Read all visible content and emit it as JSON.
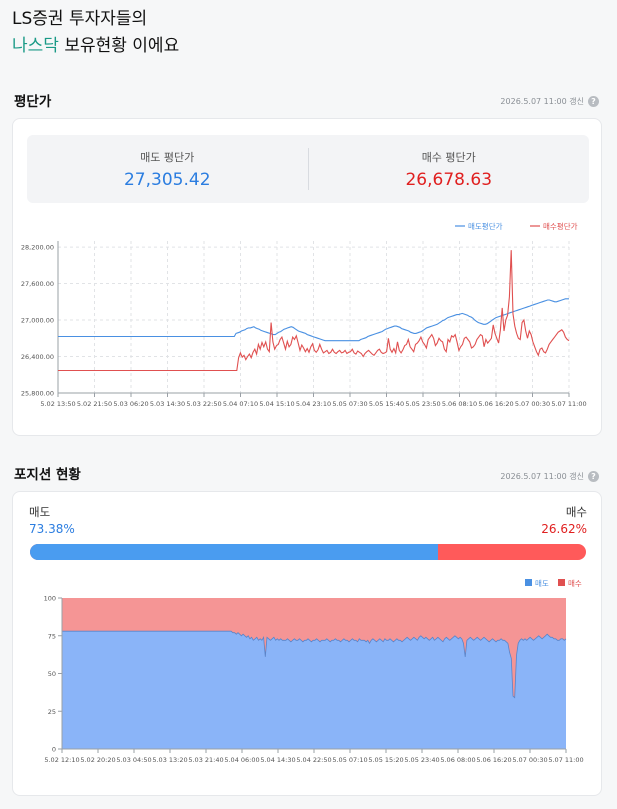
{
  "headline": {
    "line1": "LS증권 투자자들의",
    "accent": "나스닥",
    "line2_rest": " 보유현황 이에요"
  },
  "avg_section": {
    "title": "평단가",
    "updated": "2026.5.07 11:00 갱신",
    "help": "?",
    "sell_label": "매도 평단가",
    "sell_value": "27,305.42",
    "buy_label": "매수 평단가",
    "buy_value": "26,678.63"
  },
  "position_section": {
    "title": "포지션 현황",
    "updated": "2026.5.07 11:00 갱신",
    "help": "?",
    "sell_label": "매도",
    "sell_pct_text": "73.38%",
    "sell_ratio": 0.7338,
    "buy_label": "매수",
    "buy_pct_text": "26.62%"
  },
  "colors": {
    "sell": "#4a90e2",
    "buy": "#e05050",
    "sell_area": "#8ab4f8",
    "buy_area": "#f59595",
    "accent": "#1a9a86"
  },
  "chart_data": [
    {
      "type": "line",
      "legend_position": "top-right",
      "grid": true,
      "ylim": [
        25800,
        28300
      ],
      "y_ticks": [
        "28,200.00",
        "27,600.00",
        "27,000.00",
        "26,400.00",
        "25,800.00"
      ],
      "y_tick_values": [
        28200,
        27600,
        27000,
        26400,
        25800
      ],
      "x_ticks": [
        "5.02 13:50",
        "5.02 21:50",
        "5.03 06:20",
        "5.03 14:30",
        "5.03 22:50",
        "5.04 07:10",
        "5.04 15:10",
        "5.04 23:10",
        "5.05 07:30",
        "5.05 15:40",
        "5.05 23:50",
        "5.06 08:10",
        "5.06 16:20",
        "5.07 00:30",
        "5.07 11:00"
      ],
      "series": [
        {
          "name": "매도평단가",
          "color": "#4a90e2",
          "values": [
            26730,
            26730,
            26730,
            26730,
            26730,
            26730,
            26730,
            26730,
            26730,
            26730,
            26730,
            26730,
            26730,
            26730,
            26730,
            26730,
            26730,
            26730,
            26730,
            26730,
            26730,
            26730,
            26730,
            26730,
            26730,
            26730,
            26730,
            26730,
            26730,
            26730,
            26730,
            26730,
            26730,
            26730,
            26730,
            26730,
            26730,
            26730,
            26730,
            26730,
            26730,
            26730,
            26730,
            26730,
            26730,
            26730,
            26730,
            26730,
            26730,
            26730,
            26730,
            26730,
            26730,
            26730,
            26730,
            26730,
            26730,
            26730,
            26730,
            26730,
            26730,
            26730,
            26730,
            26730,
            26730,
            26730,
            26730,
            26730,
            26730,
            26730,
            26730,
            26730,
            26730,
            26730,
            26730,
            26730,
            26730,
            26730,
            26730,
            26730,
            26730,
            26730,
            26730,
            26730,
            26730,
            26730,
            26730,
            26730,
            26730,
            26730,
            26730,
            26730,
            26730,
            26730,
            26730,
            26730,
            26730,
            26730,
            26730,
            26730,
            26780,
            26790,
            26800,
            26820,
            26830,
            26840,
            26860,
            26870,
            26870,
            26880,
            26890,
            26870,
            26860,
            26850,
            26830,
            26820,
            26810,
            26800,
            26790,
            26780,
            26770,
            26760,
            26760,
            26780,
            26800,
            26810,
            26830,
            26850,
            26860,
            26870,
            26880,
            26890,
            26880,
            26860,
            26840,
            26820,
            26810,
            26800,
            26790,
            26780,
            26760,
            26750,
            26740,
            26730,
            26720,
            26710,
            26700,
            26690,
            26680,
            26670,
            26660,
            26660,
            26660,
            26660,
            26660,
            26660,
            26660,
            26660,
            26660,
            26660,
            26660,
            26660,
            26660,
            26660,
            26660,
            26660,
            26660,
            26660,
            26660,
            26660,
            26680,
            26690,
            26700,
            26710,
            26730,
            26740,
            26750,
            26760,
            26770,
            26780,
            26790,
            26800,
            26810,
            26830,
            26850,
            26860,
            26870,
            26880,
            26890,
            26900,
            26900,
            26890,
            26880,
            26860,
            26850,
            26840,
            26830,
            26820,
            26800,
            26790,
            26780,
            26780,
            26790,
            26800,
            26810,
            26830,
            26850,
            26870,
            26880,
            26890,
            26900,
            26910,
            26920,
            26930,
            26950,
            26970,
            26990,
            27000,
            27020,
            27040,
            27050,
            27060,
            27070,
            27080,
            27090,
            27090,
            27100,
            27110,
            27100,
            27090,
            27080,
            27060,
            27050,
            27030,
            27000,
            26980,
            26960,
            26950,
            26940,
            26930,
            26930,
            26940,
            26960,
            26980,
            27000,
            27020,
            27040,
            27050,
            27060,
            27070,
            27080,
            27090,
            27100,
            27110,
            27120,
            27130,
            27140,
            27150,
            27160,
            27170,
            27180,
            27190,
            27200,
            27210,
            27220,
            27230,
            27240,
            27250,
            27260,
            27270,
            27280,
            27290,
            27300,
            27310,
            27320,
            27330,
            27330,
            27320,
            27310,
            27300,
            27300,
            27310,
            27320,
            27330,
            27340,
            27350,
            27350,
            27350
          ]
        },
        {
          "name": "매수평단가",
          "color": "#e05050",
          "values": [
            26170,
            26170,
            26170,
            26170,
            26170,
            26170,
            26170,
            26170,
            26170,
            26170,
            26170,
            26170,
            26170,
            26170,
            26170,
            26170,
            26170,
            26170,
            26170,
            26170,
            26170,
            26170,
            26170,
            26170,
            26170,
            26170,
            26170,
            26170,
            26170,
            26170,
            26170,
            26170,
            26170,
            26170,
            26170,
            26170,
            26170,
            26170,
            26170,
            26170,
            26170,
            26170,
            26170,
            26170,
            26170,
            26170,
            26170,
            26170,
            26170,
            26170,
            26170,
            26170,
            26170,
            26170,
            26170,
            26170,
            26170,
            26170,
            26170,
            26170,
            26170,
            26170,
            26170,
            26170,
            26170,
            26170,
            26170,
            26170,
            26170,
            26170,
            26170,
            26170,
            26170,
            26170,
            26170,
            26170,
            26170,
            26170,
            26170,
            26170,
            26170,
            26170,
            26170,
            26170,
            26170,
            26170,
            26170,
            26170,
            26170,
            26170,
            26170,
            26170,
            26170,
            26170,
            26170,
            26170,
            26170,
            26170,
            26170,
            26170,
            26380,
            26460,
            26390,
            26420,
            26350,
            26400,
            26440,
            26380,
            26470,
            26520,
            26440,
            26600,
            26520,
            26630,
            26560,
            26640,
            26520,
            26480,
            26960,
            26640,
            26520,
            26580,
            26600,
            26680,
            26720,
            26620,
            26520,
            26650,
            26560,
            26600,
            26720,
            26680,
            26740,
            26620,
            26500,
            26590,
            26540,
            26480,
            26530,
            26470,
            26560,
            26610,
            26500,
            26470,
            26510,
            26600,
            26520,
            26460,
            26480,
            26500,
            26450,
            26470,
            26520,
            26470,
            26450,
            26480,
            26500,
            26460,
            26470,
            26500,
            26450,
            26470,
            26480,
            26520,
            26460,
            26440,
            26490,
            26470,
            26450,
            26400,
            26450,
            26480,
            26500,
            26470,
            26440,
            26420,
            26460,
            26500,
            26520,
            26470,
            26450,
            26460,
            26480,
            26700,
            26520,
            26470,
            26530,
            26460,
            26640,
            26500,
            26460,
            26510,
            26580,
            26600,
            26680,
            26560,
            26520,
            26480,
            26600,
            26620,
            26660,
            26720,
            26640,
            26600,
            26540,
            26680,
            26720,
            26760,
            26700,
            26580,
            26620,
            26700,
            26660,
            26640,
            26520,
            26480,
            26680,
            26640,
            26740,
            26720,
            26760,
            26640,
            26500,
            26560,
            26600,
            26700,
            26720,
            26680,
            26640,
            26540,
            26560,
            26600,
            26680,
            26720,
            26760,
            26740,
            26560,
            26680,
            26620,
            26660,
            26700,
            26920,
            26780,
            26700,
            26620,
            26840,
            27200,
            26820,
            27000,
            27080,
            27380,
            28150,
            27100,
            26900,
            26780,
            26700,
            26680,
            26960,
            27000,
            26820,
            26700,
            26820,
            26760,
            26640,
            26560,
            26480,
            26420,
            26520,
            26540,
            26480,
            26460,
            26520,
            26600,
            26640,
            26680,
            26720,
            26760,
            26800,
            26820,
            26840,
            26800,
            26720,
            26680,
            26660
          ]
        }
      ]
    },
    {
      "type": "area",
      "legend_position": "top-right",
      "grid": false,
      "ylim": [
        0,
        100
      ],
      "y_ticks": [
        "100",
        "75",
        "50",
        "25",
        "0"
      ],
      "y_tick_values": [
        100,
        75,
        50,
        25,
        0
      ],
      "x_ticks": [
        "5.02 12:10",
        "5.02 20:20",
        "5.03 04:50",
        "5.03 13:20",
        "5.03 21:40",
        "5.04 06:00",
        "5.04 14:30",
        "5.04 22:50",
        "5.05 07:10",
        "5.05 15:20",
        "5.05 23:40",
        "5.06 08:00",
        "5.06 16:20",
        "5.07 00:30",
        "5.07 11:00"
      ],
      "series": [
        {
          "name": "매도",
          "color": "#4a90e2",
          "fill": "#8ab4f8",
          "values": [
            78,
            78,
            78,
            78,
            78,
            78,
            78,
            78,
            78,
            78,
            78,
            78,
            78,
            78,
            78,
            78,
            78,
            78,
            78,
            78,
            78,
            78,
            78,
            78,
            78,
            78,
            78,
            78,
            78,
            78,
            78,
            78,
            78,
            78,
            78,
            78,
            78,
            78,
            78,
            78,
            78,
            78,
            78,
            78,
            78,
            78,
            78,
            78,
            78,
            78,
            78,
            78,
            78,
            78,
            78,
            78,
            78,
            78,
            78,
            78,
            78,
            78,
            78,
            78,
            78,
            78,
            78,
            78,
            78,
            78,
            78,
            78,
            78,
            78,
            78,
            78,
            78,
            78,
            78,
            78,
            78,
            78,
            78,
            78,
            78,
            78,
            78,
            78,
            78,
            78,
            78,
            78,
            78,
            78,
            78,
            78,
            78,
            78,
            78,
            78,
            77,
            77,
            76,
            77,
            76,
            75,
            76,
            75,
            74,
            75,
            73,
            74,
            72,
            73,
            74,
            72,
            73,
            72,
            74,
            61,
            74,
            73,
            72,
            73,
            74,
            72,
            73,
            72,
            73,
            72,
            72,
            72,
            73,
            72,
            71,
            72,
            73,
            72,
            72,
            73,
            72,
            71,
            72,
            72,
            73,
            72,
            71,
            72,
            72,
            73,
            72,
            71,
            72,
            72,
            72,
            73,
            72,
            71,
            72,
            72,
            73,
            72,
            72,
            71,
            72,
            73,
            72,
            72,
            71,
            72,
            73,
            72,
            72,
            71,
            73,
            72,
            72,
            72,
            71,
            72,
            70,
            72,
            73,
            72,
            71,
            72,
            73,
            72,
            71,
            73,
            72,
            72,
            73,
            72,
            71,
            72,
            73,
            72,
            72,
            71,
            72,
            73,
            74,
            73,
            72,
            73,
            74,
            73,
            72,
            74,
            75,
            74,
            73,
            74,
            73,
            72,
            73,
            74,
            72,
            73,
            74,
            73,
            72,
            71,
            73,
            74,
            73,
            72,
            73,
            74,
            75,
            74,
            73,
            74,
            73,
            70,
            61,
            72,
            73,
            74,
            73,
            72,
            73,
            74,
            73,
            72,
            73,
            74,
            73,
            72,
            71,
            72,
            73,
            72,
            71,
            72,
            72,
            73,
            72,
            72,
            71,
            70,
            64,
            60,
            35,
            34,
            62,
            70,
            72,
            73,
            72,
            73,
            72,
            73,
            74,
            73,
            72,
            73,
            74,
            75,
            74,
            73,
            74,
            75,
            76,
            75,
            74,
            74,
            73,
            73,
            72,
            72,
            73,
            73,
            72,
            73
          ]
        },
        {
          "name": "매수",
          "color": "#e05050",
          "fill": "#f59595"
        }
      ]
    }
  ]
}
